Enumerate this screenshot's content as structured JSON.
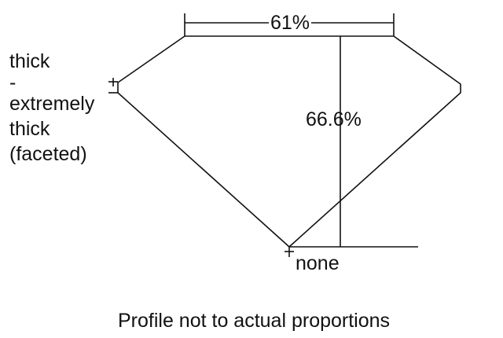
{
  "labels": {
    "table": "61%",
    "depth": "66.6%",
    "girdle": [
      "thick",
      "-",
      "extremely",
      "thick",
      "(faceted)"
    ],
    "culet": "none",
    "note": "Profile not to actual proportions"
  },
  "colors": {
    "line": "#111111",
    "background": "#ffffff"
  }
}
